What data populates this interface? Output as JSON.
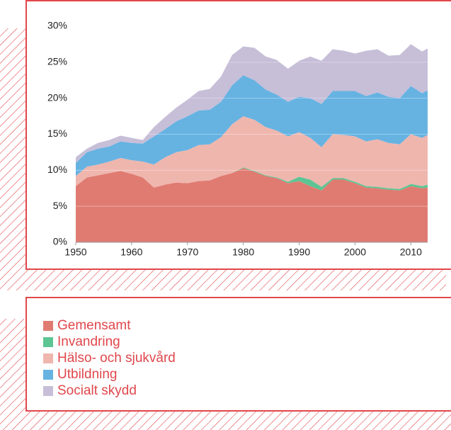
{
  "chart_data": {
    "type": "area",
    "stacked": true,
    "x": [
      1950,
      1952,
      1954,
      1956,
      1958,
      1960,
      1962,
      1964,
      1966,
      1968,
      1970,
      1972,
      1974,
      1976,
      1978,
      1980,
      1982,
      1984,
      1986,
      1988,
      1990,
      1992,
      1994,
      1996,
      1998,
      2000,
      2002,
      2004,
      2006,
      2008,
      2010,
      2012,
      2013
    ],
    "xlim": [
      1950,
      2013
    ],
    "xticks": [
      1950,
      1960,
      1970,
      1980,
      1990,
      2000,
      2010
    ],
    "ylim": [
      0,
      30
    ],
    "yticks": [
      {
        "value": 0,
        "label": "0%"
      },
      {
        "value": 5,
        "label": "5%"
      },
      {
        "value": 10,
        "label": "10%"
      },
      {
        "value": 15,
        "label": "15%"
      },
      {
        "value": 20,
        "label": "20%"
      },
      {
        "value": 25,
        "label": "25%"
      },
      {
        "value": 30,
        "label": "30%"
      }
    ],
    "grid": true,
    "series": [
      {
        "name": "Gemensamt",
        "color": "#e07b72",
        "values": [
          7.8,
          9,
          9.3,
          9.6,
          9.9,
          9.5,
          9,
          7.6,
          8,
          8.3,
          8.2,
          8.5,
          8.6,
          9.2,
          9.6,
          10.3,
          9.8,
          9.2,
          8.9,
          8.2,
          8.5,
          7.8,
          7.2,
          8.7,
          8.7,
          8.2,
          7.6,
          7.5,
          7.3,
          7.2,
          7.8,
          7.5,
          7.6
        ]
      },
      {
        "name": "Invandring",
        "color": "#5cc593",
        "values": [
          0,
          0,
          0,
          0,
          0,
          0,
          0,
          0,
          0,
          0,
          0,
          0,
          0,
          0,
          0,
          0.1,
          0.1,
          0.1,
          0.1,
          0.2,
          0.6,
          0.9,
          0.5,
          0.2,
          0.2,
          0.2,
          0.2,
          0.2,
          0.2,
          0.2,
          0.3,
          0.3,
          0.4
        ]
      },
      {
        "name": "Hälso- och sjukvård",
        "color": "#efb6ae",
        "values": [
          1.4,
          1.5,
          1.5,
          1.6,
          1.8,
          1.9,
          2.2,
          3.2,
          3.8,
          4.2,
          4.6,
          5.0,
          5.0,
          5.4,
          6.8,
          7.1,
          7.1,
          6.7,
          6.5,
          6.3,
          6.2,
          5.8,
          5.5,
          6.1,
          6.0,
          6.3,
          6.2,
          6.6,
          6.3,
          6.2,
          6.9,
          6.7,
          6.9
        ]
      },
      {
        "name": "Utbildning",
        "color": "#66b3e2",
        "values": [
          1.8,
          2.0,
          2.2,
          2.1,
          2.3,
          2.4,
          2.5,
          3.9,
          3.9,
          4.3,
          4.7,
          4.8,
          4.8,
          4.9,
          5.4,
          5.7,
          5.5,
          5.2,
          5.0,
          4.8,
          4.9,
          5.5,
          6.0,
          6.0,
          6.1,
          6.3,
          6.3,
          6.5,
          6.4,
          6.4,
          6.7,
          6.2,
          6.2
        ]
      },
      {
        "name": "Socialt skydd",
        "color": "#c7bed8",
        "values": [
          0.8,
          0.5,
          0.8,
          0.9,
          0.8,
          0.7,
          0.5,
          1.3,
          1.7,
          1.9,
          2.3,
          2.7,
          2.9,
          3.5,
          4.2,
          4.0,
          4.5,
          4.6,
          4.8,
          4.6,
          5.0,
          5.8,
          6.0,
          5.8,
          5.6,
          5.2,
          6.3,
          6.0,
          5.7,
          6.0,
          5.8,
          5.8,
          5.8
        ]
      }
    ]
  }
}
